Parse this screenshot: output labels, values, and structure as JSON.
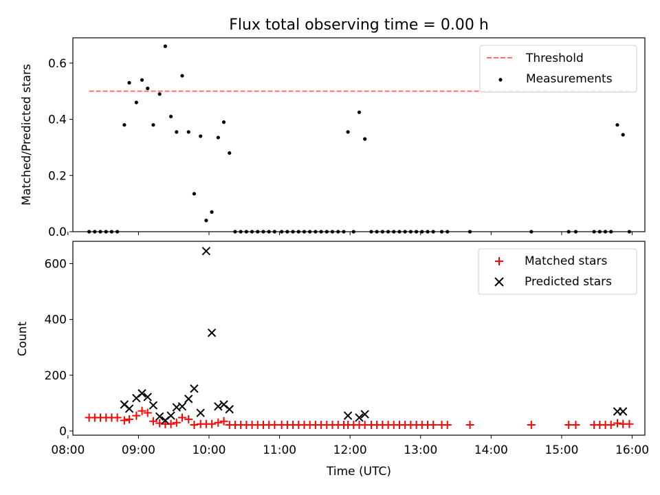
{
  "title": "Flux total observing time = 0.00 h",
  "chart_data": [
    {
      "type": "scatter",
      "ylabel": "Matched/Predicted stars",
      "xlabel": "",
      "xlim": [
        8.07,
        16.18
      ],
      "ylim": [
        0,
        0.69
      ],
      "x_ticks": [
        8,
        9,
        10,
        11,
        12,
        13,
        14,
        15,
        16
      ],
      "y_ticks": [
        0.0,
        0.2,
        0.4,
        0.6
      ],
      "y_tick_labels": [
        "0.0",
        "0.2",
        "0.4",
        "0.6"
      ],
      "legend_position": "upper right",
      "threshold": {
        "name": "Threshold",
        "value": 0.5,
        "x_range": [
          8.3,
          16.0
        ],
        "color": "#ff7070",
        "style": "dashed"
      },
      "series": [
        {
          "name": "Measurements",
          "color": "#000000",
          "marker": "dot",
          "x": [
            8.3,
            8.38,
            8.46,
            8.54,
            8.62,
            8.7,
            8.8,
            8.87,
            8.97,
            9.05,
            9.13,
            9.21,
            9.3,
            9.38,
            9.46,
            9.54,
            9.62,
            9.71,
            9.79,
            9.88,
            9.96,
            10.04,
            10.13,
            10.21,
            10.29,
            10.37,
            10.45,
            10.53,
            10.61,
            10.69,
            10.77,
            10.85,
            10.93,
            11.03,
            11.11,
            11.19,
            11.27,
            11.35,
            11.43,
            11.51,
            11.59,
            11.67,
            11.75,
            11.83,
            11.91,
            11.97,
            12.05,
            12.13,
            12.21,
            12.3,
            12.38,
            12.46,
            12.54,
            12.62,
            12.7,
            12.78,
            12.86,
            12.94,
            13.02,
            13.1,
            13.18,
            13.3,
            13.38,
            13.7,
            14.57,
            15.1,
            15.2,
            15.46,
            15.54,
            15.62,
            15.7,
            15.79,
            15.87,
            15.96
          ],
          "y": [
            0,
            0,
            0,
            0,
            0,
            0,
            0.38,
            0.53,
            0.46,
            0.54,
            0.51,
            0.38,
            0.49,
            0.66,
            0.41,
            0.355,
            0.555,
            0.355,
            0.135,
            0.34,
            0.04,
            0.07,
            0.335,
            0.39,
            0.28,
            0,
            0,
            0,
            0,
            0,
            0,
            0,
            0,
            0,
            0,
            0,
            0,
            0,
            0,
            0,
            0,
            0,
            0,
            0,
            0,
            0.355,
            0,
            0.425,
            0.33,
            0,
            0,
            0,
            0,
            0,
            0,
            0,
            0,
            0,
            0,
            0,
            0,
            0,
            0,
            0,
            0,
            0,
            0,
            0,
            0,
            0,
            0,
            0.38,
            0.345,
            0
          ]
        }
      ]
    },
    {
      "type": "scatter",
      "xlabel": "Time (UTC)",
      "ylabel": "Count",
      "xlim": [
        8.07,
        16.18
      ],
      "ylim": [
        -15,
        680
      ],
      "x_ticks": [
        8,
        9,
        10,
        11,
        12,
        13,
        14,
        15,
        16
      ],
      "x_tick_labels": [
        "08:00",
        "09:00",
        "10:00",
        "11:00",
        "12:00",
        "13:00",
        "14:00",
        "15:00",
        "16:00"
      ],
      "y_ticks": [
        0,
        200,
        400,
        600
      ],
      "y_tick_labels": [
        "0",
        "200",
        "400",
        "600"
      ],
      "legend_position": "upper right",
      "series": [
        {
          "name": "Matched stars",
          "color": "#ff0000",
          "marker": "plus",
          "x": [
            8.3,
            8.38,
            8.46,
            8.54,
            8.62,
            8.7,
            8.8,
            8.87,
            8.97,
            9.05,
            9.13,
            9.21,
            9.3,
            9.38,
            9.46,
            9.54,
            9.62,
            9.71,
            9.79,
            9.88,
            9.96,
            10.04,
            10.13,
            10.21,
            10.29,
            10.37,
            10.45,
            10.53,
            10.61,
            10.69,
            10.77,
            10.85,
            10.93,
            11.03,
            11.11,
            11.19,
            11.27,
            11.35,
            11.43,
            11.51,
            11.59,
            11.67,
            11.75,
            11.83,
            11.91,
            11.97,
            12.05,
            12.13,
            12.21,
            12.3,
            12.38,
            12.46,
            12.54,
            12.62,
            12.7,
            12.78,
            12.86,
            12.94,
            13.02,
            13.1,
            13.18,
            13.3,
            13.38,
            13.7,
            14.57,
            15.1,
            15.2,
            15.46,
            15.54,
            15.62,
            15.7,
            15.79,
            15.87,
            15.96
          ],
          "y": [
            48,
            48,
            48,
            48,
            48,
            48,
            38,
            42,
            55,
            72,
            65,
            35,
            28,
            25,
            25,
            30,
            48,
            42,
            22,
            25,
            25,
            25,
            30,
            35,
            22,
            22,
            22,
            22,
            22,
            22,
            22,
            22,
            22,
            22,
            22,
            22,
            22,
            22,
            22,
            22,
            22,
            22,
            22,
            22,
            22,
            22,
            22,
            22,
            22,
            22,
            22,
            22,
            22,
            22,
            22,
            22,
            22,
            22,
            22,
            22,
            22,
            22,
            22,
            22,
            22,
            22,
            22,
            22,
            22,
            22,
            22,
            28,
            25,
            25
          ]
        },
        {
          "name": "Predicted stars",
          "color": "#000000",
          "marker": "x",
          "x": [
            8.8,
            8.87,
            8.97,
            9.05,
            9.13,
            9.21,
            9.3,
            9.38,
            9.46,
            9.54,
            9.62,
            9.71,
            9.79,
            9.88,
            9.96,
            10.04,
            10.13,
            10.21,
            10.29,
            11.97,
            12.13,
            12.21,
            15.79,
            15.87
          ],
          "y": [
            95,
            80,
            118,
            135,
            122,
            92,
            52,
            38,
            55,
            85,
            88,
            115,
            152,
            65,
            645,
            352,
            88,
            95,
            78,
            55,
            48,
            60,
            70,
            70
          ]
        }
      ]
    }
  ]
}
